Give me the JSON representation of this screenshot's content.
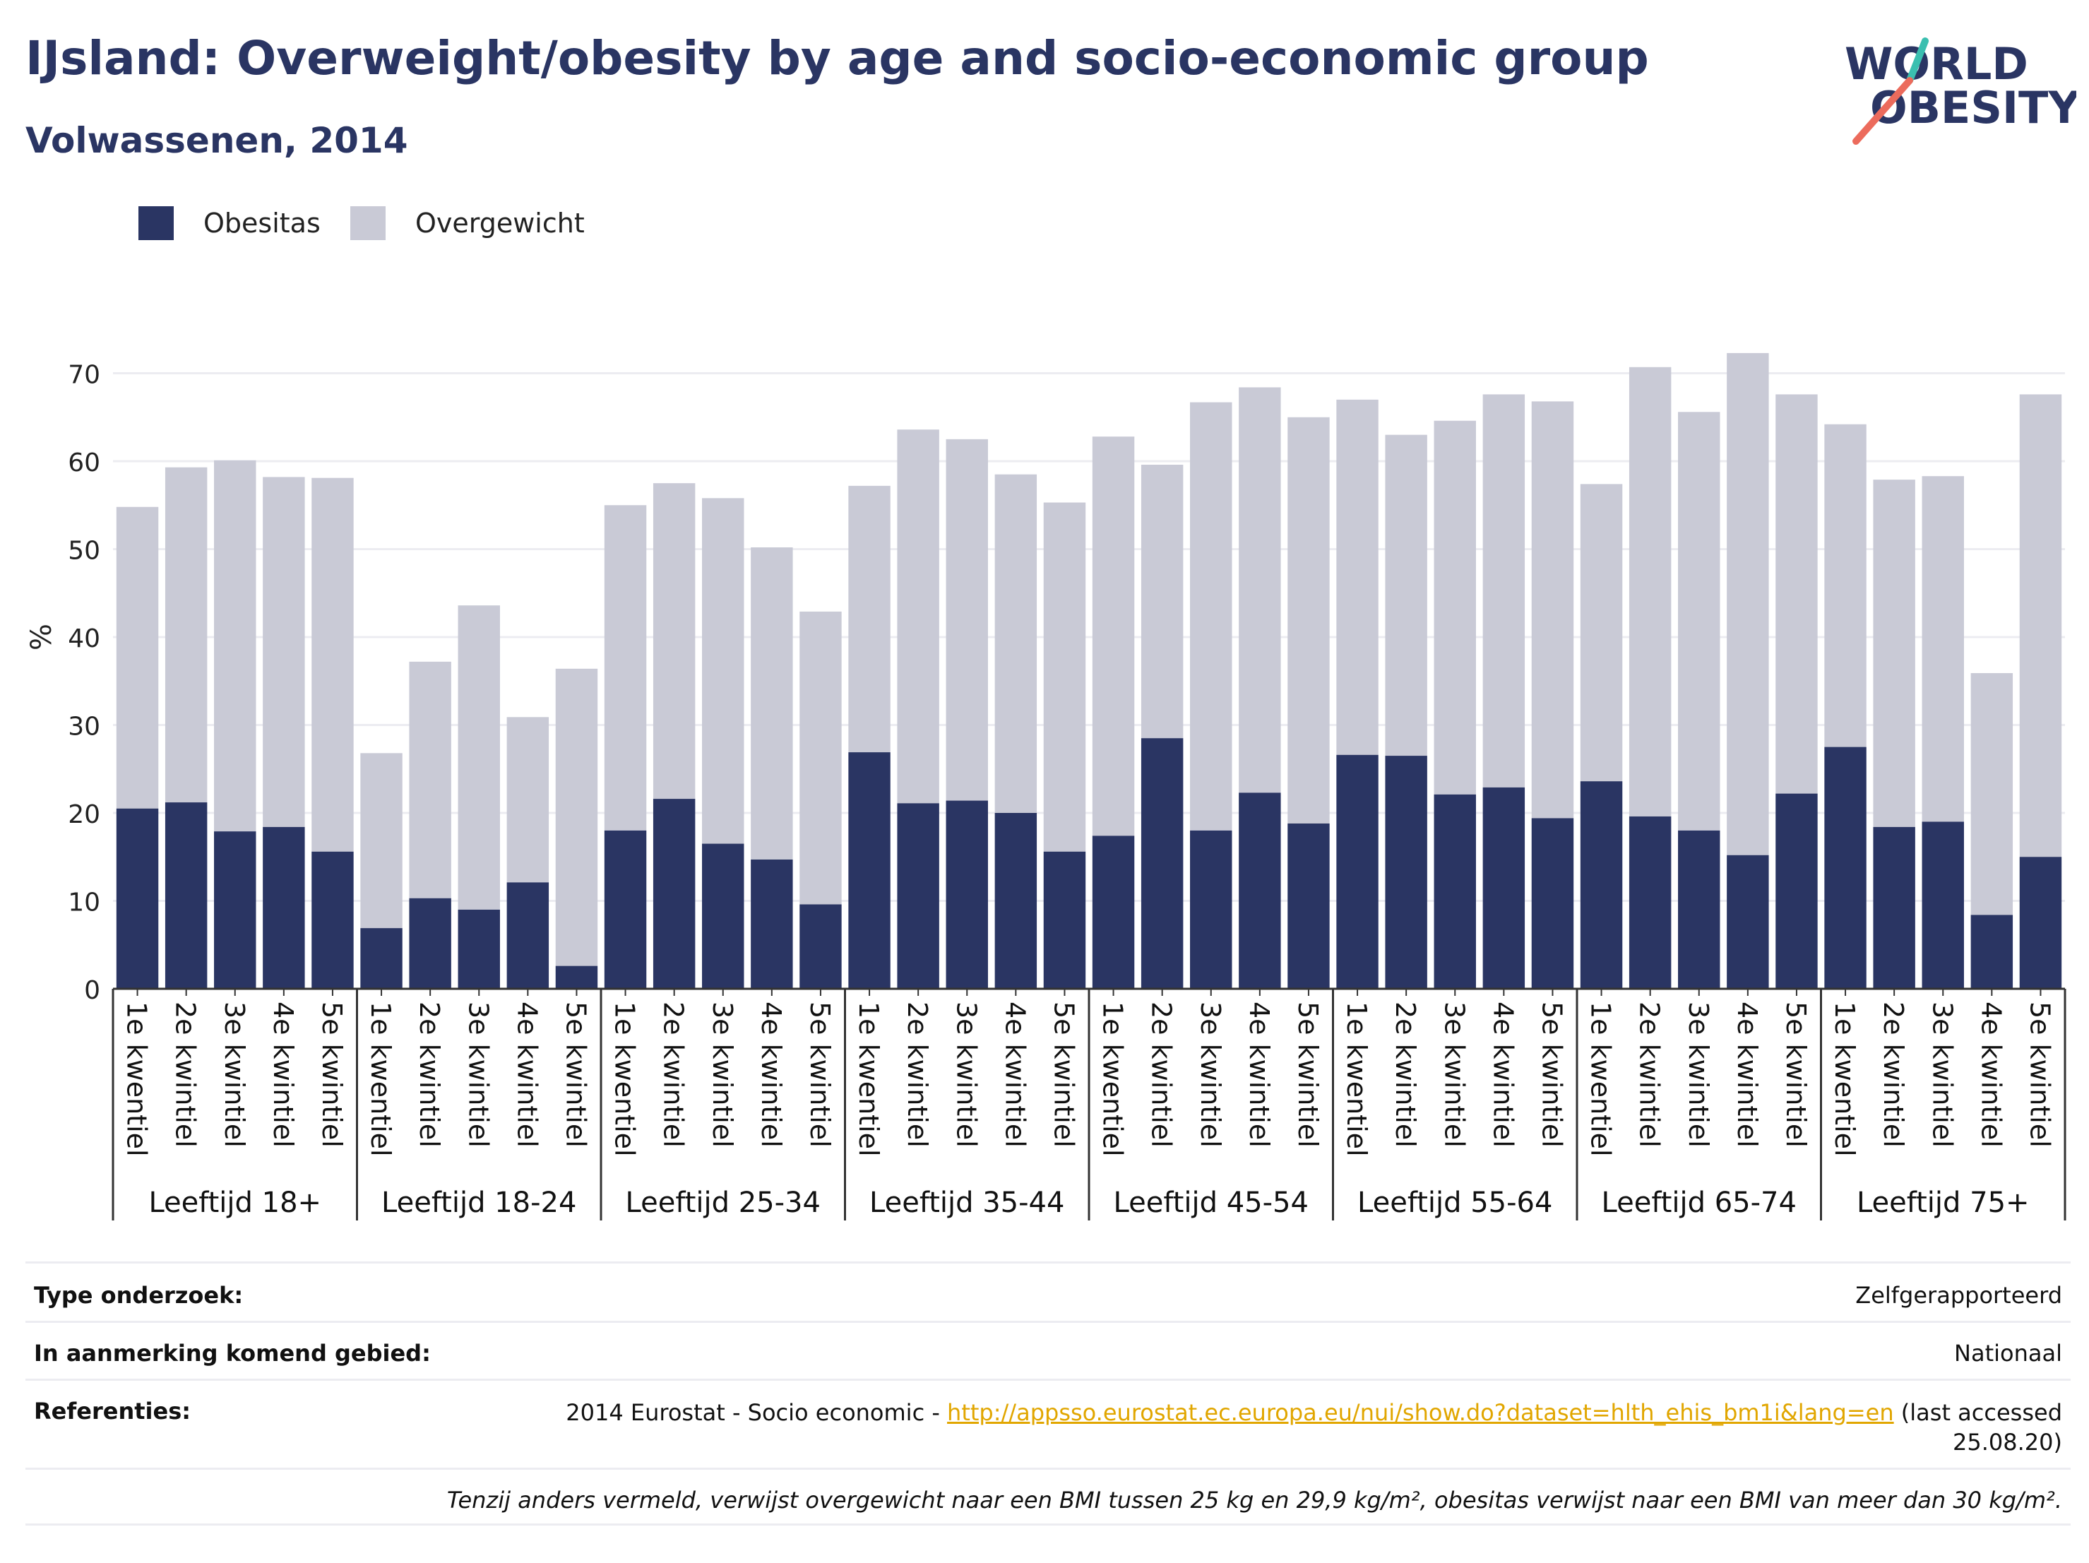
{
  "header": {
    "title": "IJsland: Overweight/obesity by age and socio-economic group",
    "subtitle": "Volwassenen, 2014"
  },
  "logo": {
    "line1": "WORLD",
    "line2": "OBESITY"
  },
  "colors": {
    "obesity": "#2a3563",
    "overweight": "#c9cad6",
    "title": "#2a3563",
    "link": "#e1a600"
  },
  "chart_data": {
    "type": "bar",
    "stacked": true,
    "ylabel": "%",
    "ylim": [
      0,
      75
    ],
    "yticks": [
      0,
      10,
      20,
      30,
      40,
      50,
      60,
      70
    ],
    "grid": true,
    "legend_position": "top-left",
    "legend": [
      "Obesitas",
      "Overgewicht"
    ],
    "groups": [
      {
        "label": "Leeftijd 18+",
        "categories": [
          "1e kwentiel",
          "2e kwintiel",
          "3e kwintiel",
          "4e kwintiel",
          "5e kwintiel"
        ],
        "obesity": [
          20.5,
          21.2,
          17.9,
          18.4,
          15.6
        ],
        "total": [
          54.8,
          59.3,
          60.1,
          58.2,
          58.1
        ]
      },
      {
        "label": "Leeftijd 18-24",
        "categories": [
          "1e kwentiel",
          "2e kwintiel",
          "3e kwintiel",
          "4e kwintiel",
          "5e kwintiel"
        ],
        "obesity": [
          6.9,
          10.3,
          9.0,
          12.1,
          2.6
        ],
        "total": [
          26.8,
          37.2,
          43.6,
          30.9,
          36.4
        ]
      },
      {
        "label": "Leeftijd 25-34",
        "categories": [
          "1e kwentiel",
          "2e kwintiel",
          "3e kwintiel",
          "4e kwintiel",
          "5e kwintiel"
        ],
        "obesity": [
          18.0,
          21.6,
          16.5,
          14.7,
          9.6
        ],
        "total": [
          55.0,
          57.5,
          55.8,
          50.2,
          42.9
        ]
      },
      {
        "label": "Leeftijd 35-44",
        "categories": [
          "1e kwentiel",
          "2e kwintiel",
          "3e kwintiel",
          "4e kwintiel",
          "5e kwintiel"
        ],
        "obesity": [
          26.9,
          21.1,
          21.4,
          20.0,
          15.6
        ],
        "total": [
          57.2,
          63.6,
          62.5,
          58.5,
          55.3
        ]
      },
      {
        "label": "Leeftijd 45-54",
        "categories": [
          "1e kwentiel",
          "2e kwintiel",
          "3e kwintiel",
          "4e kwintiel",
          "5e kwintiel"
        ],
        "obesity": [
          17.4,
          28.5,
          18.0,
          22.3,
          18.8
        ],
        "total": [
          62.8,
          59.6,
          66.7,
          68.4,
          65.0
        ]
      },
      {
        "label": "Leeftijd 55-64",
        "categories": [
          "1e kwentiel",
          "2e kwintiel",
          "3e kwintiel",
          "4e kwintiel",
          "5e kwintiel"
        ],
        "obesity": [
          26.6,
          26.5,
          22.1,
          22.9,
          19.4
        ],
        "total": [
          67.0,
          63.0,
          64.6,
          67.6,
          66.8
        ]
      },
      {
        "label": "Leeftijd 65-74",
        "categories": [
          "1e kwentiel",
          "2e kwintiel",
          "3e kwintiel",
          "4e kwintiel",
          "5e kwintiel"
        ],
        "obesity": [
          23.6,
          19.6,
          18.0,
          15.2,
          22.2
        ],
        "total": [
          57.4,
          70.7,
          65.6,
          72.3,
          67.6
        ]
      },
      {
        "label": "Leeftijd 75+",
        "categories": [
          "1e kwentiel",
          "2e kwintiel",
          "3e kwintiel",
          "4e kwintiel",
          "5e kwintiel"
        ],
        "obesity": [
          27.5,
          18.4,
          19.0,
          8.4,
          15.0
        ],
        "total": [
          64.2,
          57.9,
          58.3,
          35.9,
          67.6
        ]
      }
    ]
  },
  "info": {
    "rows": [
      {
        "key": "Type onderzoek:",
        "value": "Zelfgerapporteerd"
      },
      {
        "key": "In aanmerking komend gebied:",
        "value": "Nationaal"
      }
    ],
    "references": {
      "key": "Referenties:",
      "prefix": "2014 Eurostat - Socio economic - ",
      "link": "http://appsso.eurostat.ec.europa.eu/nui/show.do?dataset=hlth_ehis_bm1i&lang=en",
      "suffix_line1": " (last accessed",
      "suffix_line2": "25.08.20)"
    },
    "footnote": "Tenzij anders vermeld, verwijst overgewicht naar een BMI tussen 25 kg en 29,9 kg/m², obesitas verwijst naar een BMI van meer dan 30 kg/m²."
  }
}
